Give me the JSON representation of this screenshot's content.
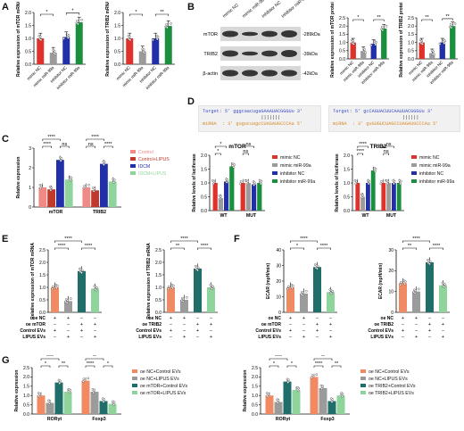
{
  "colors": {
    "red": "#e0312b",
    "gray": "#9b9b9b",
    "blue": "#2130a8",
    "green": "#1a8f3d",
    "pink": "#ef8a86",
    "lightgreen": "#8fd49b",
    "teal": "#1f6e6a",
    "salmon": "#f08a63",
    "darkred": "#c0392b"
  },
  "panels": {
    "A": "A",
    "B": "B",
    "C": "C",
    "D": "D",
    "E": "E",
    "F": "F",
    "G": "G"
  },
  "blot": {
    "header_labels": [
      "mimic NC",
      "mimic miR-99a",
      "inhibitor NC",
      "inhibitor miR-99a"
    ],
    "rows": [
      {
        "name": "mTOR",
        "size": "-289kDa"
      },
      {
        "name": "TRIB2",
        "size": "-39kDa"
      },
      {
        "name": "β-actin",
        "size": "-42kDa"
      }
    ]
  },
  "sequences": {
    "left": {
      "target": "Target: 5' gggcaacugaGAAAUACGGGUu 3'",
      "pairs": "                     |||||||",
      "mirna": "miRNA  : 3' gugucuagcCUAGAUGCCCAa 5'"
    },
    "right": {
      "target": "Target: 5' gcCAGUACUUCAAUUACGGGUu 3'",
      "pairs": "                         ||||||",
      "mirna": "miRNA  : 3' guGUGUCUAGCCUAGAUGCCCAa 5'"
    }
  },
  "chart_data": [
    {
      "id": "A1",
      "type": "bar",
      "ylabel": "Relative expression of mTOR mRNA",
      "ylim": [
        0,
        2
      ],
      "yticks": [
        0,
        0.5,
        1.0,
        1.5,
        2.0
      ],
      "categories": [
        "mimic NC",
        "mimic miR-99a",
        "inhibitor NC",
        "inhibitor miR-99a"
      ],
      "values": [
        1.0,
        0.45,
        1.05,
        1.62
      ],
      "sig": [
        {
          "from": 0,
          "to": 1,
          "label": "*"
        },
        {
          "from": 2,
          "to": 3,
          "label": "*"
        }
      ]
    },
    {
      "id": "A2",
      "type": "bar",
      "ylabel": "Relative expression of TRIB2 mRNA",
      "ylim": [
        0,
        2
      ],
      "yticks": [
        0,
        0.5,
        1.0,
        1.5,
        2.0
      ],
      "categories": [
        "mimic NC",
        "mimic miR-99a",
        "inhibitor NC",
        "inhibitor miR-99a"
      ],
      "values": [
        1.0,
        0.5,
        1.0,
        1.48
      ],
      "sig": [
        {
          "from": 0,
          "to": 1,
          "label": "*"
        },
        {
          "from": 2,
          "to": 3,
          "label": "**"
        }
      ]
    },
    {
      "id": "B1",
      "type": "bar",
      "ylabel": "Relative expression of mTOR protein",
      "ylim": [
        0,
        2.5
      ],
      "yticks": [
        0,
        0.5,
        1.0,
        1.5,
        2.0,
        2.5
      ],
      "categories": [
        "mimic NC",
        "mimic miR-99a",
        "inhibitor NC",
        "inhibitor miR-99a"
      ],
      "values": [
        1.0,
        0.48,
        0.92,
        1.85
      ],
      "sig": [
        {
          "from": 0,
          "to": 1,
          "label": "*"
        },
        {
          "from": 2,
          "to": 3,
          "label": "**"
        }
      ]
    },
    {
      "id": "B2",
      "type": "bar",
      "ylabel": "Relative expression of TRIB2 protein",
      "ylim": [
        0,
        2.5
      ],
      "yticks": [
        0,
        0.5,
        1.0,
        1.5,
        2.0,
        2.5
      ],
      "categories": [
        "mimic NC",
        "mimic miR-99a",
        "inhibitor NC",
        "inhibitor miR-99a"
      ],
      "values": [
        1.0,
        0.35,
        1.0,
        2.0
      ],
      "sig": [
        {
          "from": 0,
          "to": 1,
          "label": "**"
        },
        {
          "from": 2,
          "to": 3,
          "label": "**"
        }
      ]
    },
    {
      "id": "C",
      "type": "grouped-bar",
      "ylabel": "Relative expression",
      "ylim": [
        0,
        3
      ],
      "yticks": [
        0,
        1,
        2,
        3
      ],
      "categories": [
        "mTOR",
        "TRIB2"
      ],
      "series": [
        {
          "name": "Control",
          "values": [
            1.0,
            1.0
          ]
        },
        {
          "name": "Control+LIPUS",
          "values": [
            0.9,
            0.85
          ]
        },
        {
          "name": "IDCM",
          "values": [
            2.4,
            2.2
          ]
        },
        {
          "name": "IDCM+LIPUS",
          "values": [
            1.4,
            1.3
          ]
        }
      ],
      "sig_labels": [
        "****",
        "****",
        "ns",
        "****",
        "ns",
        "****"
      ]
    },
    {
      "id": "D1",
      "type": "grouped-bar",
      "title": "mTOR",
      "ylabel": "Relative levels of luciferase",
      "ylim": [
        0,
        2
      ],
      "yticks": [
        0.0,
        0.5,
        1.0,
        1.5,
        2.0
      ],
      "categories": [
        "WT",
        "MUT"
      ],
      "series": [
        {
          "name": "mimic NC",
          "values": [
            1.0,
            1.0
          ]
        },
        {
          "name": "mimic miR-99a",
          "values": [
            0.45,
            1.0
          ]
        },
        {
          "name": "inhibitor NC",
          "values": [
            1.05,
            0.95
          ]
        },
        {
          "name": "inhibitor miR-99a",
          "values": [
            1.6,
            1.0
          ]
        }
      ],
      "sig_labels": [
        "*",
        "*",
        "ns",
        "ns"
      ]
    },
    {
      "id": "D2",
      "type": "grouped-bar",
      "title": "TRIB2",
      "ylabel": "Relative levels of luciferase",
      "ylim": [
        0,
        2
      ],
      "yticks": [
        0.0,
        0.5,
        1.0,
        1.5,
        2.0
      ],
      "categories": [
        "WT",
        "MUT"
      ],
      "series": [
        {
          "name": "mimic NC",
          "values": [
            1.0,
            1.0
          ]
        },
        {
          "name": "mimic miR-99a",
          "values": [
            0.5,
            1.0
          ]
        },
        {
          "name": "inhibitor NC",
          "values": [
            1.0,
            1.0
          ]
        },
        {
          "name": "inhibitor miR-99a",
          "values": [
            1.45,
            1.0
          ]
        }
      ],
      "sig_labels": [
        "****",
        "****",
        "ns",
        "ns"
      ]
    },
    {
      "id": "E1",
      "type": "bar",
      "ylabel": "Relative expression of mTOR mRNA",
      "ylim": [
        0,
        2.5
      ],
      "yticks": [
        0.0,
        0.5,
        1.0,
        1.5,
        2.0,
        2.5
      ],
      "values": [
        1.0,
        0.45,
        1.65,
        0.95
      ],
      "conditions": [
        {
          "label": "oe NC",
          "marks": [
            "+",
            "+",
            "−",
            "−"
          ]
        },
        {
          "label": "oe mTOR",
          "marks": [
            "−",
            "−",
            "+",
            "+"
          ]
        },
        {
          "label": "Control EVs",
          "marks": [
            "+",
            "−",
            "+",
            "−"
          ]
        },
        {
          "label": "LIPUS EVs",
          "marks": [
            "−",
            "+",
            "−",
            "+"
          ]
        }
      ],
      "sig_labels": [
        "****",
        "****",
        "****"
      ]
    },
    {
      "id": "E2",
      "type": "bar",
      "ylabel": "Relative expression of TRIB2 mRNA",
      "ylim": [
        0,
        2.5
      ],
      "yticks": [
        0.0,
        0.5,
        1.0,
        1.5,
        2.0,
        2.5
      ],
      "values": [
        1.0,
        0.5,
        1.75,
        1.0
      ],
      "conditions": [
        {
          "label": "oe NC",
          "marks": [
            "+",
            "+",
            "−",
            "−"
          ]
        },
        {
          "label": "oe TRIB2",
          "marks": [
            "−",
            "−",
            "+",
            "+"
          ]
        },
        {
          "label": "Control EVs",
          "marks": [
            "+",
            "−",
            "+",
            "−"
          ]
        },
        {
          "label": "LIPUS EVs",
          "marks": [
            "−",
            "+",
            "−",
            "+"
          ]
        }
      ],
      "sig_labels": [
        "****",
        "**",
        "****"
      ]
    },
    {
      "id": "F1",
      "type": "bar",
      "ylabel": "ECAR (mpH/min)",
      "ylim": [
        0,
        40
      ],
      "yticks": [
        0,
        10,
        20,
        30,
        40
      ],
      "values": [
        16,
        12,
        29,
        13
      ],
      "conditions": [
        {
          "label": "oe NC",
          "marks": [
            "+",
            "+",
            "−",
            "−"
          ]
        },
        {
          "label": "oe mTOR",
          "marks": [
            "−",
            "−",
            "+",
            "+"
          ]
        },
        {
          "label": "Control EVs",
          "marks": [
            "+",
            "−",
            "+",
            "−"
          ]
        },
        {
          "label": "LIPUS EVs",
          "marks": [
            "−",
            "+",
            "−",
            "+"
          ]
        }
      ],
      "sig_labels": [
        "****",
        "*",
        "****"
      ]
    },
    {
      "id": "F2",
      "type": "bar",
      "ylabel": "ECAR (mpH/min)",
      "ylim": [
        0,
        30
      ],
      "yticks": [
        0,
        10,
        20,
        30
      ],
      "values": [
        14,
        10,
        24,
        13
      ],
      "conditions": [
        {
          "label": "oe NC",
          "marks": [
            "+",
            "+",
            "−",
            "−"
          ]
        },
        {
          "label": "oe TRIB2",
          "marks": [
            "−",
            "−",
            "+",
            "+"
          ]
        },
        {
          "label": "Control EVs",
          "marks": [
            "+",
            "−",
            "+",
            "−"
          ]
        },
        {
          "label": "LIPUS EVs",
          "marks": [
            "−",
            "+",
            "−",
            "+"
          ]
        }
      ],
      "sig_labels": [
        "****",
        "**",
        "****"
      ]
    },
    {
      "id": "G1",
      "type": "grouped-bar",
      "ylabel": "Relative expression",
      "ylim": [
        0,
        2.5
      ],
      "yticks": [
        0.0,
        0.5,
        1.0,
        1.5,
        2.0,
        2.5
      ],
      "categories": [
        "RORγt",
        "Foxp3"
      ],
      "series": [
        {
          "name": "oe NC+Control EVs",
          "values": [
            1.0,
            1.8
          ]
        },
        {
          "name": "oe NC+LIPUS EVs",
          "values": [
            0.6,
            1.2
          ]
        },
        {
          "name": "oe mTOR+Control EVs",
          "values": [
            1.7,
            0.7
          ]
        },
        {
          "name": "oe mTOR+LIPUS EVs",
          "values": [
            1.2,
            0.55
          ]
        }
      ],
      "sig_labels": [
        "****",
        "*",
        "**",
        "**",
        "****",
        "*"
      ]
    },
    {
      "id": "G2",
      "type": "grouped-bar",
      "ylabel": "Relative expression",
      "ylim": [
        0,
        2.5
      ],
      "yticks": [
        0.0,
        0.5,
        1.0,
        1.5,
        2.0,
        2.5
      ],
      "categories": [
        "RORγt",
        "Foxp3"
      ],
      "series": [
        {
          "name": "oe NC+Control EVs",
          "values": [
            1.0,
            2.0
          ]
        },
        {
          "name": "oe NC+LIPUS EVs",
          "values": [
            0.65,
            1.4
          ]
        },
        {
          "name": "oe TRIB2+Control EVs",
          "values": [
            1.75,
            0.7
          ]
        },
        {
          "name": "oe TRIB2+LIPUS EVs",
          "values": [
            1.3,
            1.0
          ]
        }
      ],
      "sig_labels": [
        "****",
        "*",
        "*",
        "**",
        "****",
        "**"
      ]
    }
  ]
}
